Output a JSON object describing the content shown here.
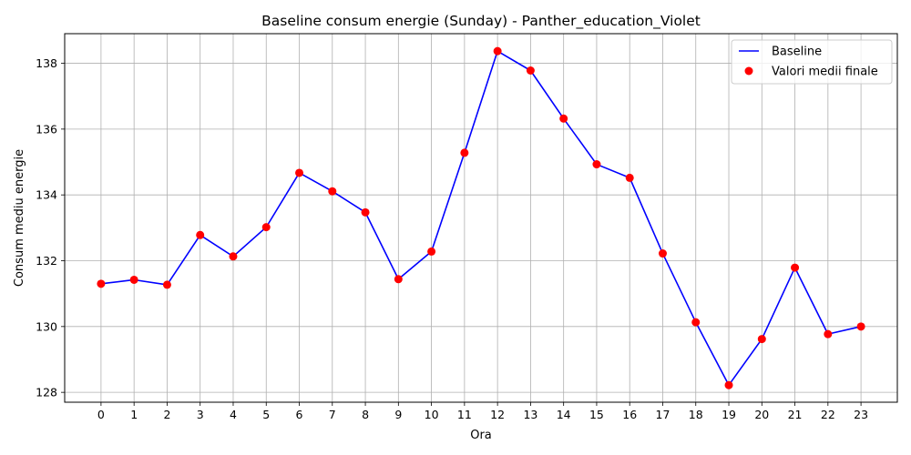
{
  "chart_data": {
    "type": "line",
    "title": "Baseline consum energie (Sunday) - Panther_education_Violet",
    "xlabel": "Ora",
    "ylabel": "Consum mediu energie",
    "x": [
      0,
      1,
      2,
      3,
      4,
      5,
      6,
      7,
      8,
      9,
      10,
      11,
      12,
      13,
      14,
      15,
      16,
      17,
      18,
      19,
      20,
      21,
      22,
      23
    ],
    "x_tick_labels": [
      "0",
      "1",
      "2",
      "3",
      "4",
      "5",
      "6",
      "7",
      "8",
      "9",
      "10",
      "11",
      "12",
      "13",
      "14",
      "15",
      "16",
      "17",
      "18",
      "19",
      "20",
      "21",
      "22",
      "23"
    ],
    "y_ticks": [
      128,
      130,
      132,
      134,
      136,
      138
    ],
    "y_tick_labels": [
      "128",
      "130",
      "132",
      "134",
      "136",
      "138"
    ],
    "xlim": [
      -1.1,
      24.1
    ],
    "ylim": [
      127.7,
      138.9
    ],
    "grid": true,
    "legend_position": "top-right",
    "series": [
      {
        "name": "Baseline",
        "kind": "line",
        "color": "#0000ff",
        "values": [
          131.3,
          131.42,
          131.27,
          132.78,
          132.13,
          133.02,
          134.67,
          134.11,
          133.47,
          131.44,
          132.28,
          135.28,
          138.37,
          137.78,
          136.32,
          134.93,
          134.52,
          132.22,
          130.13,
          128.22,
          129.62,
          131.79,
          129.77,
          130.0
        ]
      },
      {
        "name": "Valori medii finale",
        "kind": "scatter",
        "color": "#ff0000",
        "values": [
          131.3,
          131.42,
          131.27,
          132.78,
          132.13,
          133.02,
          134.67,
          134.11,
          133.47,
          131.44,
          132.28,
          135.28,
          138.37,
          137.78,
          136.32,
          134.93,
          134.52,
          132.22,
          130.13,
          128.22,
          129.62,
          131.79,
          129.77,
          130.0
        ]
      }
    ]
  }
}
